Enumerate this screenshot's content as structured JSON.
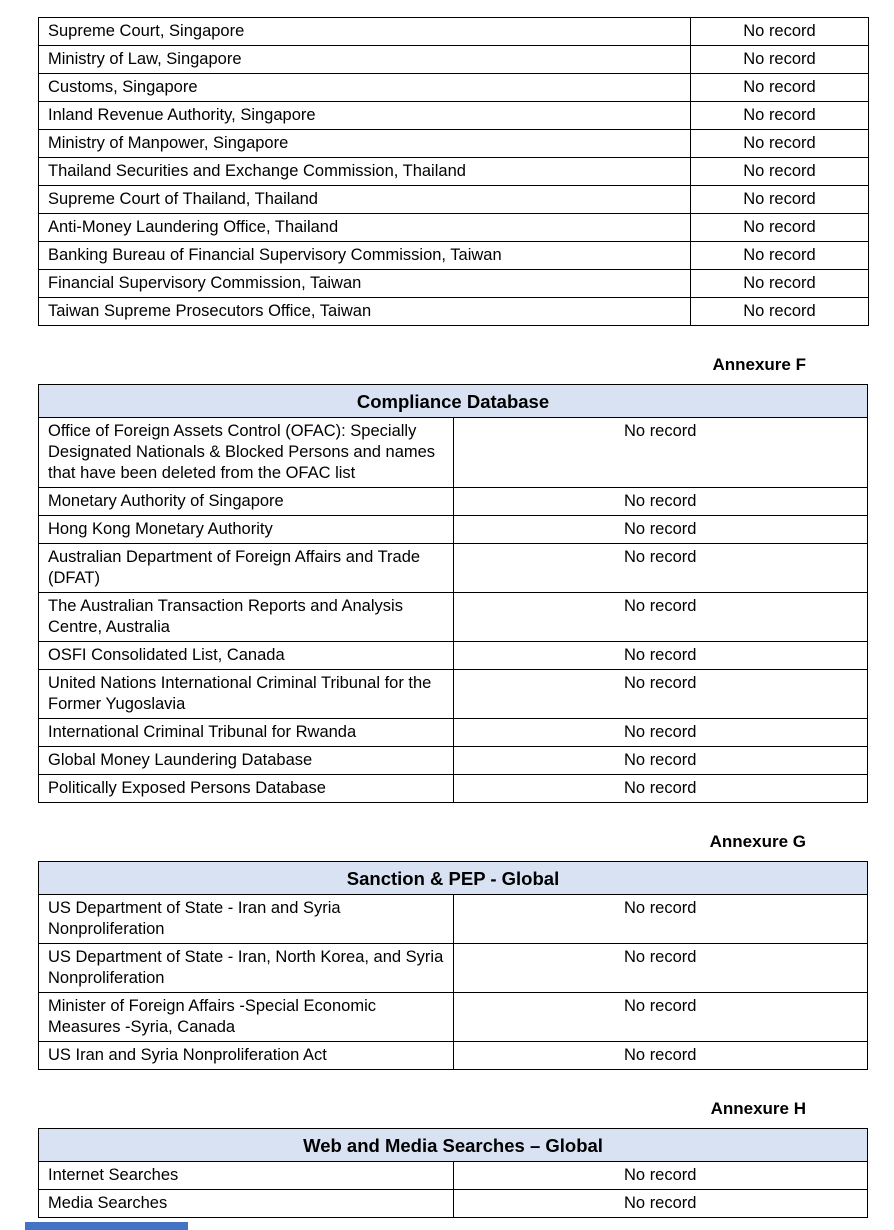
{
  "document": {
    "result_value": "No record"
  },
  "colors": {
    "page_background": "#FFFFFF",
    "table_border": "#000000",
    "table_header_fill": "#D9E2F3",
    "partial_bottom_bar": "#4472C4"
  },
  "tables": [
    {
      "name": "regional-regulatory-sources",
      "annexure_label": "",
      "title": "",
      "rows": [
        {
          "source": "Supreme Court, Singapore",
          "result": "No record"
        },
        {
          "source": "Ministry of Law, Singapore",
          "result": "No record"
        },
        {
          "source": "Customs, Singapore",
          "result": "No record"
        },
        {
          "source": "Inland Revenue Authority, Singapore",
          "result": "No record"
        },
        {
          "source": "Ministry of Manpower, Singapore",
          "result": "No record"
        },
        {
          "source": "Thailand Securities and Exchange Commission, Thailand",
          "result": "No record"
        },
        {
          "source": "Supreme Court of Thailand, Thailand",
          "result": "No record"
        },
        {
          "source": "Anti-Money Laundering Office, Thailand",
          "result": "No record"
        },
        {
          "source": "Banking Bureau of Financial Supervisory Commission, Taiwan",
          "result": "No record"
        },
        {
          "source": "Financial Supervisory Commission, Taiwan",
          "result": "No record"
        },
        {
          "source": "Taiwan Supreme Prosecutors Office, Taiwan",
          "result": "No record"
        }
      ]
    },
    {
      "name": "compliance-database",
      "annexure_label": "Annexure F",
      "title": "Compliance Database",
      "rows": [
        {
          "source": "Office of Foreign Assets Control (OFAC): Specially Designated Nationals & Blocked Persons and names that have been deleted from the OFAC list",
          "result": "No record"
        },
        {
          "source": "Monetary Authority of Singapore",
          "result": "No record"
        },
        {
          "source": "Hong Kong Monetary Authority",
          "result": "No record"
        },
        {
          "source": "Australian Department of Foreign Affairs and Trade (DFAT)",
          "result": "No record"
        },
        {
          "source": "The Australian Transaction Reports and Analysis Centre, Australia",
          "result": "No record"
        },
        {
          "source": "OSFI Consolidated List, Canada",
          "result": "No record"
        },
        {
          "source": "United Nations International Criminal Tribunal for the Former Yugoslavia",
          "result": "No record"
        },
        {
          "source": "International Criminal Tribunal for Rwanda",
          "result": "No record"
        },
        {
          "source": "Global Money Laundering Database",
          "result": "No record"
        },
        {
          "source": "Politically Exposed Persons Database",
          "result": "No record"
        }
      ]
    },
    {
      "name": "sanction-pep-global",
      "annexure_label": "Annexure G",
      "title": "Sanction & PEP - Global",
      "rows": [
        {
          "source": "US Department of State - Iran and Syria Nonproliferation",
          "result": "No record"
        },
        {
          "source": "US Department of State - Iran, North Korea, and Syria Nonproliferation",
          "result": "No record"
        },
        {
          "source": "Minister of Foreign Affairs -Special Economic Measures -Syria, Canada",
          "result": "No record"
        },
        {
          "source": "US Iran and Syria Nonproliferation Act",
          "result": "No record"
        }
      ]
    },
    {
      "name": "web-media-searches-global",
      "annexure_label": "Annexure H",
      "title": "Web and Media Searches – Global",
      "rows": [
        {
          "source": "Internet Searches",
          "result": "No record"
        },
        {
          "source": "Media Searches",
          "result": "No record"
        }
      ]
    }
  ]
}
